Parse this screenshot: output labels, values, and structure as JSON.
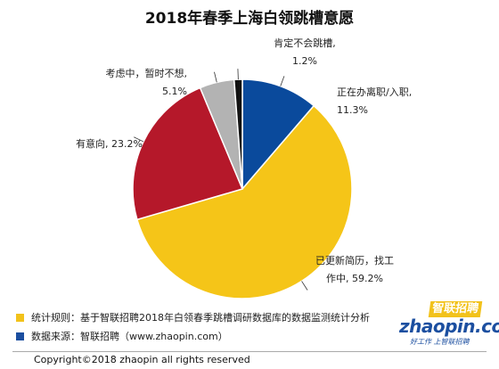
{
  "chart_data": {
    "type": "pie",
    "title": "2018年春季上海白领跳槽意愿",
    "slices": [
      {
        "label_lines": [
          "正在办离职/入职,",
          "11.3%"
        ],
        "value": 11.3,
        "color": "#0a4a9c"
      },
      {
        "label_lines": [
          "已更新简历，找工",
          "作中, 59.2%"
        ],
        "value": 59.2,
        "color": "#f5c518"
      },
      {
        "label_lines": [
          "有意向, 23.2%"
        ],
        "value": 23.2,
        "color": "#b5182a"
      },
      {
        "label_lines": [
          "考虑中，暂时不想,",
          "5.1%"
        ],
        "value": 5.1,
        "color": "#b3b3b3"
      },
      {
        "label_lines": [
          "肯定不会跳槽,",
          "1.2%"
        ],
        "value": 1.2,
        "color": "#111111"
      }
    ]
  },
  "footnotes": [
    {
      "color": "#f2c21b",
      "text": "统计规则：基于智联招聘2018年白领春季跳槽调研数据库的数据监测统计分析"
    },
    {
      "color": "#1c4fa0",
      "text": "数据来源：智联招聘（www.zhaopin.com）"
    }
  ],
  "copyright": "Copyright©2018 zhaopin all rights reserved",
  "logo": {
    "brand_cn": "智联招聘",
    "wordmark": "zhaopin.com",
    "slogan": "好工作 上智联招聘"
  }
}
